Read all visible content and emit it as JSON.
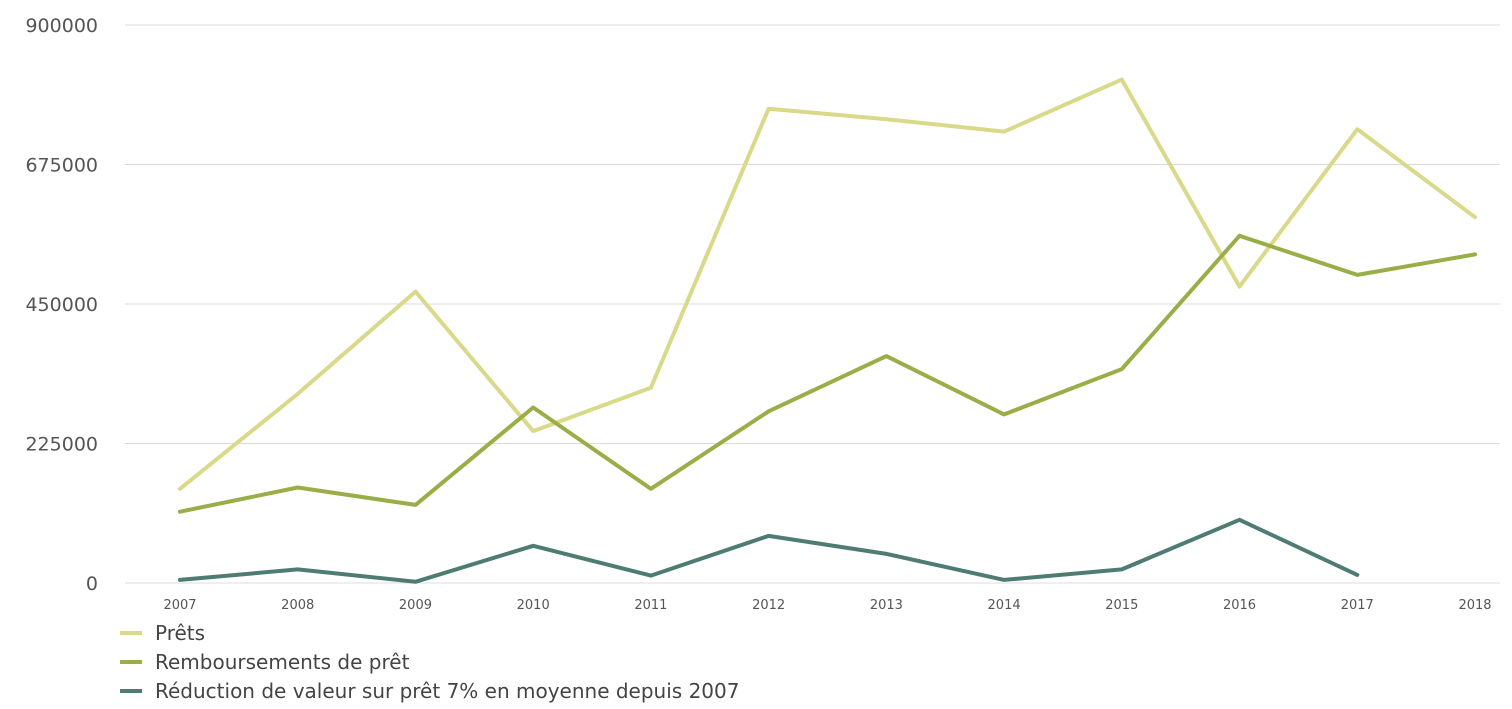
{
  "chart_data": {
    "type": "line",
    "title": "",
    "xlabel": "",
    "ylabel": "",
    "x": [
      "2007",
      "2008",
      "2009",
      "2010",
      "2011",
      "2012",
      "2013",
      "2014",
      "2015",
      "2016",
      "2017",
      "2018"
    ],
    "y_ticks": [
      "900000",
      "675000",
      "450000",
      "225000",
      "0"
    ],
    "ylim": [
      0,
      900000
    ],
    "grid": true,
    "legend_position": "bottom-left",
    "series": [
      {
        "name": "Prêts",
        "color": "#d9d98a",
        "values": [
          152000,
          305000,
          470000,
          245000,
          315000,
          765000,
          748000,
          728000,
          812000,
          478000,
          732000,
          590000
        ]
      },
      {
        "name": "Remboursements de prêt",
        "color": "#9aae48",
        "values": [
          115000,
          154000,
          126000,
          283000,
          152000,
          277000,
          366000,
          272000,
          345000,
          560000,
          497000,
          530000
        ]
      },
      {
        "name": "Réduction de valeur sur prêt  7% en moyenne depuis 2007",
        "color": "#4e7c72",
        "values": [
          5000,
          22000,
          2000,
          60000,
          12000,
          76000,
          47000,
          5000,
          22000,
          102000,
          13000,
          null
        ]
      }
    ]
  }
}
